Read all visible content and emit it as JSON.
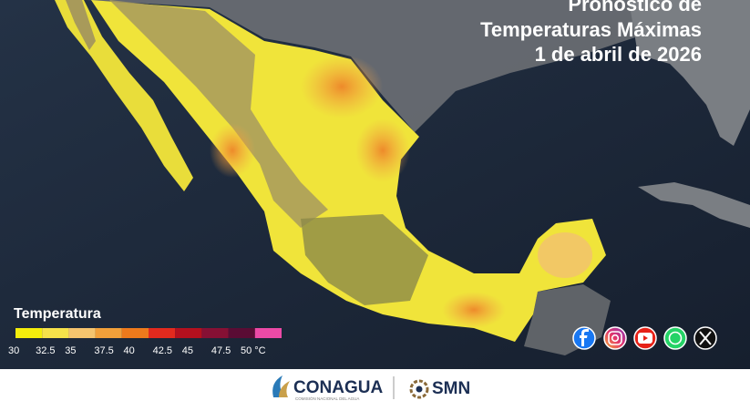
{
  "header": {
    "title_lines": [
      "Pronóstico de",
      "Temperaturas Máximas",
      "1 de abril de 2026"
    ]
  },
  "legend": {
    "title": "Temperatura",
    "colors": [
      "#f4ee0c",
      "#f6e24a",
      "#f5c46e",
      "#f2a03a",
      "#ee7a1c",
      "#e32a1e",
      "#b4101e",
      "#861034",
      "#5a0c34",
      "#ec4aa6"
    ],
    "labels": [
      "30",
      "32.5",
      "35",
      "37.5",
      "40",
      "42.5",
      "45",
      "47.5",
      "50 °C"
    ]
  },
  "footer": {
    "logos": [
      "CONAGUA",
      "SMN"
    ],
    "conagua_subtitle": "COMISIÓN NACIONAL DEL AGUA"
  }
}
